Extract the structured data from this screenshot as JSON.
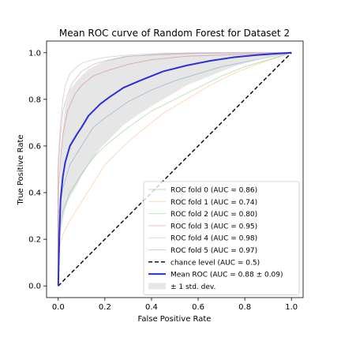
{
  "chart_data": {
    "type": "line",
    "title": "Mean ROC curve of Random Forest for Dataset 2",
    "xlabel": "False Positive Rate",
    "ylabel": "True Positive Rate",
    "xlim": [
      -0.05,
      1.05
    ],
    "ylim": [
      -0.05,
      1.05
    ],
    "xticks": [
      0.0,
      0.2,
      0.4,
      0.6,
      0.8,
      1.0
    ],
    "xtick_labels": [
      "0.0",
      "0.2",
      "0.4",
      "0.6",
      "0.8",
      "1.0"
    ],
    "yticks": [
      0.0,
      0.2,
      0.4,
      0.6,
      0.8,
      1.0
    ],
    "ytick_labels": [
      "0.0",
      "0.2",
      "0.4",
      "0.6",
      "0.8",
      "1.0"
    ],
    "grid": false,
    "legend_position": "lower right",
    "series": [
      {
        "name": "ROC fold 0 (AUC = 0.86)",
        "color": "#1f77b4",
        "alpha": 0.3,
        "x": [
          0,
          0,
          0.02,
          0.05,
          0.1,
          0.15,
          0.2,
          0.3,
          0.4,
          0.5,
          0.6,
          0.7,
          0.8,
          0.9,
          1.0
        ],
        "y": [
          0,
          0.3,
          0.42,
          0.52,
          0.6,
          0.68,
          0.72,
          0.79,
          0.84,
          0.88,
          0.91,
          0.94,
          0.96,
          0.98,
          1.0
        ]
      },
      {
        "name": "ROC fold 1 (AUC = 0.74)",
        "color": "#ff7f0e",
        "alpha": 0.3,
        "x": [
          0,
          0,
          0.02,
          0.05,
          0.1,
          0.15,
          0.2,
          0.28,
          0.35,
          0.45,
          0.55,
          0.65,
          0.75,
          0.85,
          1.0
        ],
        "y": [
          0,
          0.15,
          0.22,
          0.28,
          0.36,
          0.44,
          0.52,
          0.6,
          0.66,
          0.74,
          0.8,
          0.86,
          0.91,
          0.95,
          1.0
        ]
      },
      {
        "name": "ROC fold 2 (AUC = 0.80)",
        "color": "#2ca02c",
        "alpha": 0.3,
        "x": [
          0,
          0,
          0.02,
          0.05,
          0.1,
          0.15,
          0.2,
          0.3,
          0.4,
          0.5,
          0.6,
          0.7,
          0.8,
          0.9,
          1.0
        ],
        "y": [
          0,
          0.22,
          0.32,
          0.4,
          0.48,
          0.55,
          0.6,
          0.68,
          0.75,
          0.8,
          0.85,
          0.9,
          0.94,
          0.97,
          1.0
        ]
      },
      {
        "name": "ROC fold 3 (AUC = 0.95)",
        "color": "#d62728",
        "alpha": 0.3,
        "x": [
          0,
          0,
          0.01,
          0.02,
          0.04,
          0.07,
          0.1,
          0.15,
          0.2,
          0.3,
          0.4,
          0.55,
          0.7,
          0.85,
          1.0
        ],
        "y": [
          0,
          0.4,
          0.55,
          0.65,
          0.75,
          0.82,
          0.86,
          0.9,
          0.92,
          0.95,
          0.97,
          0.985,
          0.99,
          0.995,
          1.0
        ]
      },
      {
        "name": "ROC fold 4 (AUC = 0.98)",
        "color": "#9467bd",
        "alpha": 0.3,
        "x": [
          0,
          0,
          0.01,
          0.02,
          0.03,
          0.05,
          0.08,
          0.1,
          0.15,
          0.2,
          0.3,
          0.4,
          0.6,
          0.8,
          1.0
        ],
        "y": [
          0,
          0.55,
          0.7,
          0.8,
          0.86,
          0.91,
          0.94,
          0.955,
          0.97,
          0.98,
          0.99,
          0.995,
          1.0,
          1.0,
          1.0
        ]
      },
      {
        "name": "ROC fold 5 (AUC = 0.97)",
        "color": "#8c564b",
        "alpha": 0.3,
        "x": [
          0,
          0,
          0.01,
          0.02,
          0.04,
          0.06,
          0.1,
          0.15,
          0.2,
          0.25,
          0.3,
          0.4,
          0.6,
          0.8,
          1.0
        ],
        "y": [
          0,
          0.5,
          0.65,
          0.75,
          0.82,
          0.87,
          0.92,
          0.95,
          0.965,
          0.975,
          0.985,
          0.99,
          0.998,
          1.0,
          1.0
        ]
      },
      {
        "name": "chance level (AUC = 0.5)",
        "color": "#000000",
        "dashed": true,
        "width": 1.4,
        "x": [
          0,
          1
        ],
        "y": [
          0,
          1
        ]
      },
      {
        "name": "Mean ROC (AUC = 0.88 ± 0.09)",
        "color": "#2a30d4",
        "width": 2,
        "x": [
          0,
          0.005,
          0.01,
          0.02,
          0.03,
          0.05,
          0.08,
          0.1,
          0.13,
          0.18,
          0.22,
          0.28,
          0.35,
          0.45,
          0.55,
          0.65,
          0.75,
          0.85,
          0.92,
          1.0
        ],
        "y": [
          0,
          0.22,
          0.37,
          0.47,
          0.53,
          0.6,
          0.65,
          0.68,
          0.73,
          0.78,
          0.81,
          0.85,
          0.88,
          0.92,
          0.945,
          0.965,
          0.98,
          0.99,
          0.995,
          1.0
        ]
      }
    ],
    "band": {
      "name": "± 1 std. dev.",
      "color": "#808080",
      "alpha": 0.2,
      "x": [
        0,
        0.01,
        0.02,
        0.03,
        0.05,
        0.08,
        0.1,
        0.13,
        0.18,
        0.22,
        0.28,
        0.35,
        0.45,
        0.55,
        0.65,
        0.75,
        0.85,
        0.92,
        1.0
      ],
      "lower": [
        0,
        0.22,
        0.28,
        0.33,
        0.38,
        0.43,
        0.47,
        0.52,
        0.59,
        0.63,
        0.69,
        0.74,
        0.8,
        0.86,
        0.9,
        0.94,
        0.97,
        0.985,
        1.0
      ],
      "upper": [
        0,
        0.55,
        0.68,
        0.77,
        0.84,
        0.88,
        0.9,
        0.93,
        0.955,
        0.97,
        0.985,
        0.99,
        1.0,
        1.0,
        1.0,
        1.0,
        1.0,
        1.0,
        1.0
      ]
    }
  }
}
